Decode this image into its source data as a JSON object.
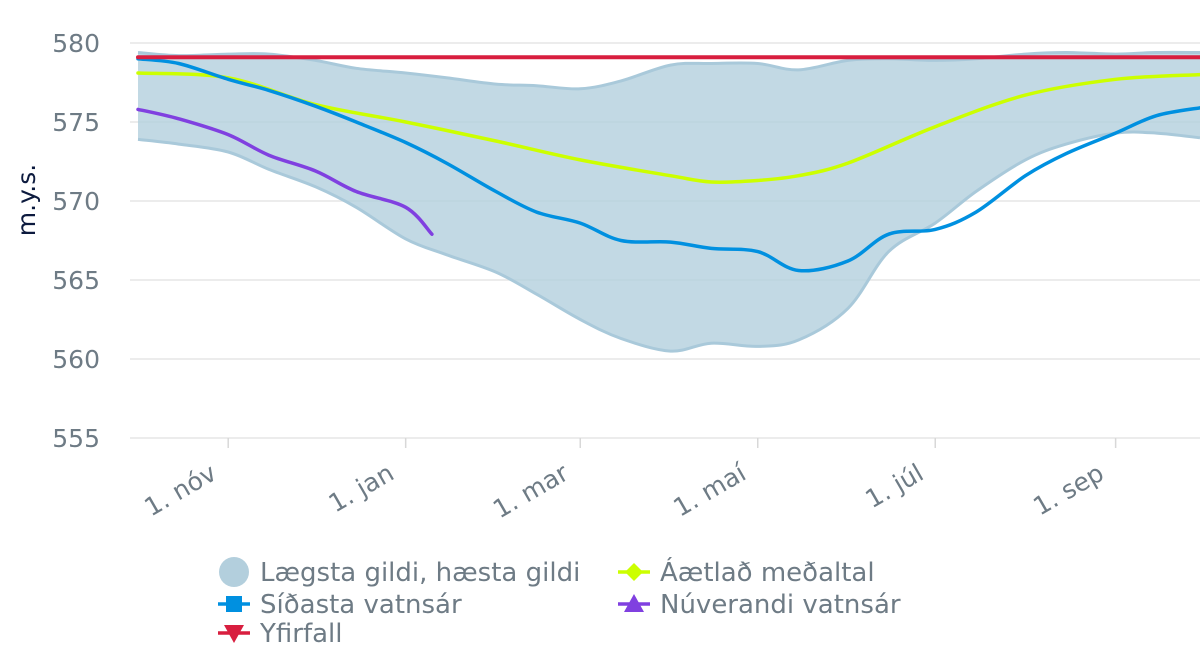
{
  "chart_data": {
    "type": "line",
    "ylabel": "m.y.s.",
    "ylim": [
      555,
      580
    ],
    "yticks": [
      555,
      560,
      565,
      570,
      575,
      580
    ],
    "xlim": [
      "2023-10-01",
      "2024-09-30"
    ],
    "xticks": [
      {
        "date": "2023-11-01",
        "label": "1. nóv"
      },
      {
        "date": "2024-01-01",
        "label": "1. jan"
      },
      {
        "date": "2024-03-01",
        "label": "1. mar"
      },
      {
        "date": "2024-05-01",
        "label": "1. maí"
      },
      {
        "date": "2024-07-01",
        "label": "1. júl"
      },
      {
        "date": "2024-09-01",
        "label": "1. sep"
      }
    ],
    "grid": true,
    "legend_position": "bottom",
    "colors": {
      "range_fill": "#b3cfdd",
      "range_stroke": "#a9c9da",
      "average": "#ccff00",
      "last_year": "#0090e0",
      "current": "#8040e0",
      "overflow": "#d81e3f",
      "legend_range_marker": "#b3cfdd"
    },
    "range": {
      "name": "Lægsta gildi, hæsta gildi",
      "x": [
        "2023-10-01",
        "2023-10-15",
        "2023-11-01",
        "2023-11-15",
        "2023-12-01",
        "2023-12-15",
        "2024-01-01",
        "2024-01-15",
        "2024-02-01",
        "2024-02-15",
        "2024-03-01",
        "2024-03-15",
        "2024-04-01",
        "2024-04-15",
        "2024-05-01",
        "2024-05-15",
        "2024-06-01",
        "2024-06-15",
        "2024-07-01",
        "2024-07-15",
        "2024-08-01",
        "2024-08-15",
        "2024-09-01",
        "2024-09-15",
        "2024-09-30"
      ],
      "low": [
        573.9,
        573.6,
        573.1,
        572.0,
        570.9,
        569.6,
        567.6,
        566.6,
        565.5,
        564.1,
        562.5,
        561.3,
        560.5,
        561.0,
        560.8,
        561.2,
        563.2,
        566.8,
        568.6,
        570.6,
        572.6,
        573.6,
        574.3,
        574.3,
        574.0
      ],
      "high": [
        579.4,
        579.2,
        579.3,
        579.3,
        578.9,
        578.4,
        578.1,
        577.8,
        577.4,
        577.3,
        577.1,
        577.6,
        578.6,
        578.7,
        578.7,
        578.3,
        578.9,
        579.0,
        578.9,
        579.0,
        579.3,
        579.4,
        579.3,
        579.4,
        579.4
      ]
    },
    "series": [
      {
        "name": "Áætlað meðaltal",
        "marker": "diamond",
        "x": [
          "2023-10-01",
          "2023-11-01",
          "2023-12-01",
          "2024-01-01",
          "2024-02-01",
          "2024-03-01",
          "2024-04-01",
          "2024-04-15",
          "2024-05-01",
          "2024-05-15",
          "2024-06-01",
          "2024-07-01",
          "2024-08-01",
          "2024-09-01",
          "2024-09-30"
        ],
        "values": [
          578.1,
          577.8,
          576.1,
          575.0,
          573.8,
          572.6,
          571.6,
          571.2,
          571.3,
          571.6,
          572.4,
          574.7,
          576.7,
          577.7,
          578.0
        ]
      },
      {
        "name": "Síðasta vatnsár",
        "marker": "square",
        "x": [
          "2023-10-01",
          "2023-10-15",
          "2023-11-01",
          "2023-11-15",
          "2023-12-01",
          "2023-12-15",
          "2024-01-01",
          "2024-01-15",
          "2024-02-01",
          "2024-02-15",
          "2024-03-01",
          "2024-03-15",
          "2024-04-01",
          "2024-04-15",
          "2024-05-01",
          "2024-05-15",
          "2024-06-01",
          "2024-06-15",
          "2024-07-01",
          "2024-07-15",
          "2024-08-01",
          "2024-08-15",
          "2024-09-01",
          "2024-09-15",
          "2024-09-30"
        ],
        "values": [
          579.0,
          578.7,
          577.7,
          577.0,
          576.0,
          575.0,
          573.7,
          572.4,
          570.6,
          569.3,
          568.6,
          567.5,
          567.4,
          567.0,
          566.8,
          565.6,
          566.2,
          567.9,
          568.2,
          569.3,
          571.6,
          573.0,
          574.3,
          575.4,
          575.9
        ]
      },
      {
        "name": "Núverandi vatnsár",
        "marker": "triangle-up",
        "x": [
          "2023-10-01",
          "2023-10-15",
          "2023-11-01",
          "2023-11-15",
          "2023-12-01",
          "2023-12-15",
          "2024-01-01",
          "2024-01-10"
        ],
        "values": [
          575.8,
          575.2,
          574.2,
          572.9,
          571.9,
          570.6,
          569.6,
          567.9
        ]
      },
      {
        "name": "Yfirfall",
        "marker": "triangle-down",
        "x": [
          "2023-10-01",
          "2024-09-30"
        ],
        "values": [
          579.1,
          579.1
        ]
      }
    ]
  }
}
